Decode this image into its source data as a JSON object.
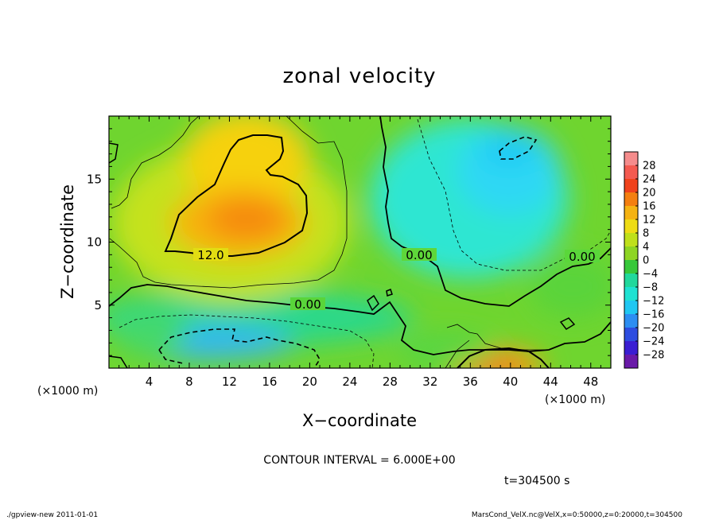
{
  "chart_data": {
    "type": "heatmap",
    "title": "zonal velocity",
    "xlabel": "X−coordinate",
    "ylabel": "Z−coordinate",
    "x_unit": "(×1000 m)",
    "y_unit": "(×1000 m)",
    "xlim": [
      0,
      50
    ],
    "ylim": [
      0,
      20
    ],
    "xticks": [
      4,
      8,
      12,
      16,
      20,
      24,
      28,
      32,
      36,
      40,
      44,
      48
    ],
    "yticks": [
      5,
      10,
      15
    ],
    "contour_interval_text": "CONTOUR INTERVAL = 6.000E+00",
    "time_text": "t=304500 s",
    "colorbar": {
      "levels": [
        28,
        24,
        20,
        16,
        12,
        8,
        4,
        0,
        -4,
        -8,
        -12,
        -16,
        -20,
        -24,
        -28
      ],
      "labels": [
        "28",
        "24",
        "20",
        "16",
        "12",
        "8",
        "4",
        "0",
        "−4",
        "−8",
        "−12",
        "−16",
        "−20",
        "−24",
        "−28"
      ]
    },
    "contour_labels": [
      {
        "text": "12.0",
        "x": 8.7,
        "z": 8.7
      },
      {
        "text": "0.00",
        "x": 19.3,
        "z": 4.9
      },
      {
        "text": "0.00",
        "x": 30.7,
        "z": 8.3
      },
      {
        "text": "0.00",
        "x": 47.0,
        "z": 8.5
      }
    ],
    "features": [
      {
        "name": "positive-max",
        "x": 14.0,
        "z": 12.0,
        "value": 18
      },
      {
        "name": "positive-upper",
        "x": 16.0,
        "z": 17.0,
        "value": 12
      },
      {
        "name": "negative-upper",
        "x": 39.0,
        "z": 15.5,
        "value": -8
      },
      {
        "name": "negative-core",
        "x": 40.0,
        "z": 17.0,
        "value": -11
      },
      {
        "name": "negative-lower",
        "x": 12.0,
        "z": 1.5,
        "value": -12
      },
      {
        "name": "negative-lower-2",
        "x": 18.0,
        "z": 1.2,
        "value": -9
      },
      {
        "name": "positive-lower",
        "x": 40.0,
        "z": 0.6,
        "value": 16
      }
    ]
  },
  "footer": {
    "left": "./gpview-new  2011-01-01",
    "right": "MarsCond_VelX.nc@VelX,x=0:50000,z=0:20000,t=304500"
  }
}
